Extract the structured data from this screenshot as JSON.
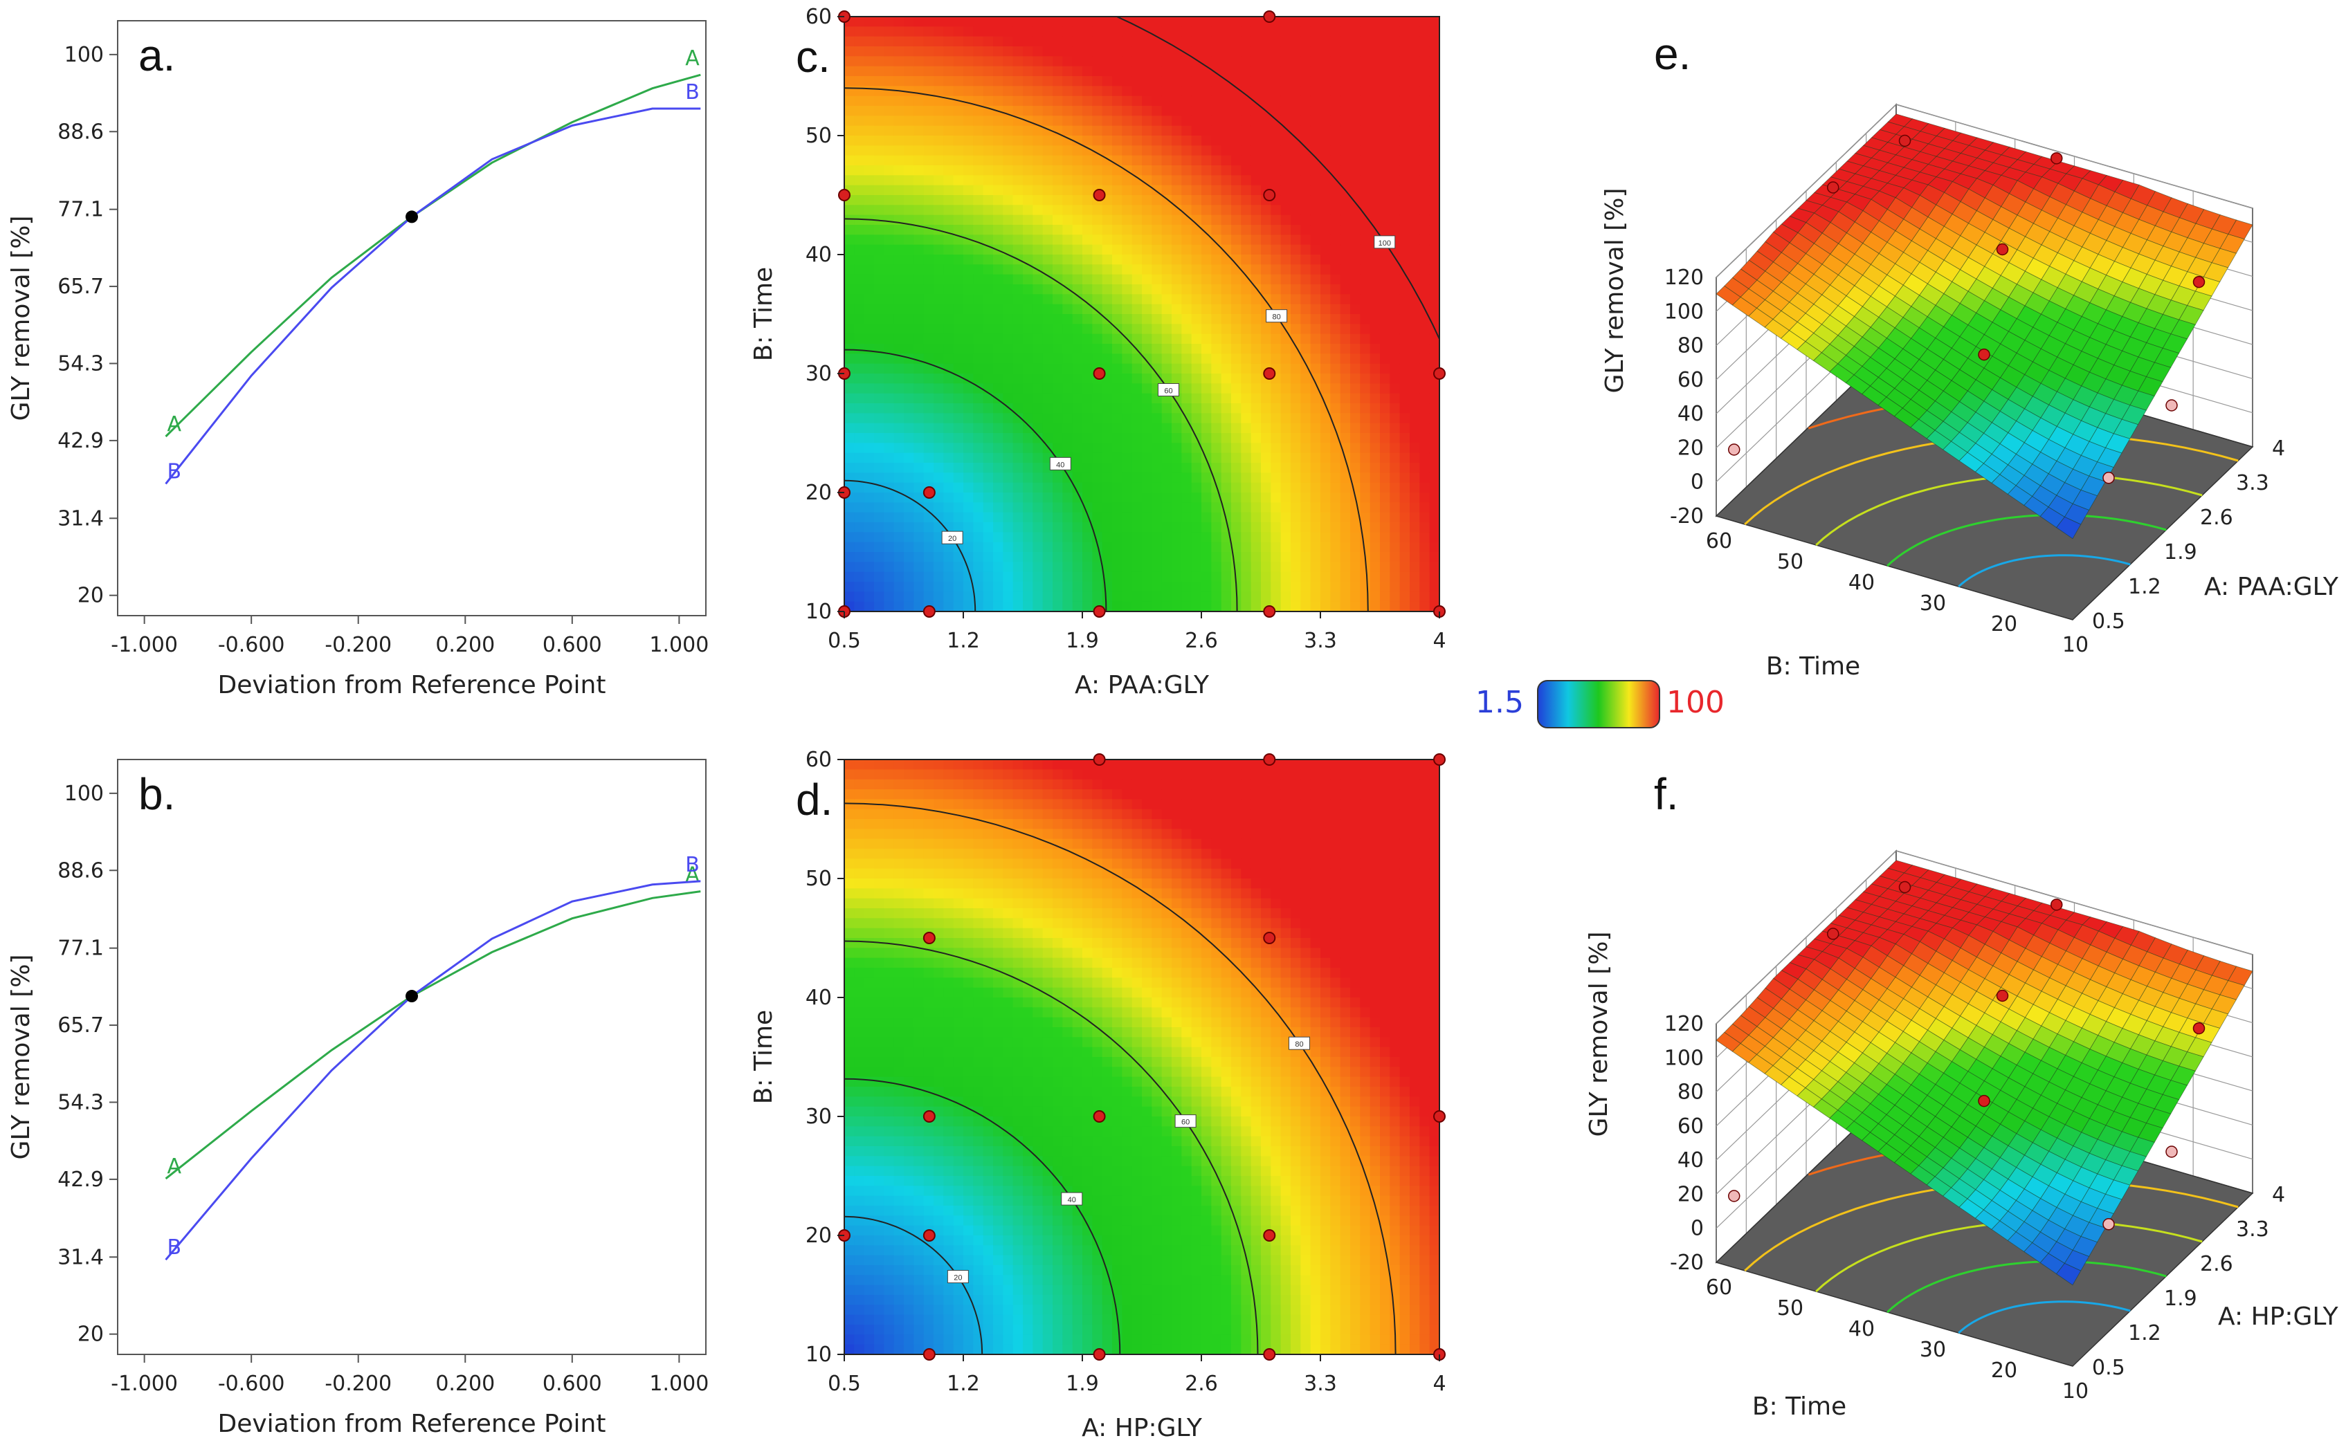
{
  "figure": {
    "colorbar": {
      "min_label": "1.5",
      "max_label": "100",
      "min_color": "#1f3fd8",
      "max_color": "#e8272c"
    }
  },
  "chart_data": [
    {
      "id": "a",
      "type": "line",
      "panel_label": "a.",
      "xlabel": "Deviation from Reference Point",
      "ylabel": "GLY removal [%]",
      "xlim": [
        -1.1,
        1.1
      ],
      "ylim": [
        17,
        105
      ],
      "xticks": [
        "-1.000",
        "-0.600",
        "-0.200",
        "0.200",
        "0.600",
        "1.000"
      ],
      "yticks": [
        "20",
        "31.4",
        "42.9",
        "54.3",
        "65.7",
        "77.1",
        "88.6",
        "100"
      ],
      "reference_point": {
        "x": 0,
        "y": 76
      },
      "series": [
        {
          "name": "A",
          "color": "#2eaa4a",
          "x": [
            -0.92,
            -0.6,
            -0.3,
            0,
            0.3,
            0.6,
            0.9,
            1.08
          ],
          "y": [
            43.5,
            56,
            67,
            76,
            84,
            90,
            95,
            97
          ]
        },
        {
          "name": "B",
          "color": "#4a4af0",
          "x": [
            -0.92,
            -0.6,
            -0.3,
            0,
            0.3,
            0.6,
            0.9,
            1.08
          ],
          "y": [
            36.5,
            52.5,
            65.5,
            76,
            84.5,
            89.5,
            92,
            92
          ]
        }
      ]
    },
    {
      "id": "b",
      "type": "line",
      "panel_label": "b.",
      "xlabel": "Deviation from Reference Point",
      "ylabel": "GLY removal [%]",
      "xlim": [
        -1.1,
        1.1
      ],
      "ylim": [
        17,
        105
      ],
      "xticks": [
        "-1.000",
        "-0.600",
        "-0.200",
        "0.200",
        "0.600",
        "1.000"
      ],
      "yticks": [
        "20",
        "31.4",
        "42.9",
        "54.3",
        "65.7",
        "77.1",
        "88.6",
        "100"
      ],
      "reference_point": {
        "x": 0,
        "y": 70
      },
      "series": [
        {
          "name": "A",
          "color": "#2eaa4a",
          "x": [
            -0.92,
            -0.6,
            -0.3,
            0,
            0.3,
            0.6,
            0.9,
            1.08
          ],
          "y": [
            43,
            53,
            62,
            70,
            76.5,
            81.5,
            84.5,
            85.5
          ]
        },
        {
          "name": "B",
          "color": "#4a4af0",
          "x": [
            -0.92,
            -0.6,
            -0.3,
            0,
            0.3,
            0.6,
            0.9,
            1.08
          ],
          "y": [
            31,
            46,
            59,
            70,
            78.5,
            84,
            86.5,
            87
          ]
        }
      ]
    },
    {
      "id": "c",
      "type": "heatmap",
      "panel_label": "c.",
      "xlabel": "A: PAA:GLY",
      "ylabel": "B: Time",
      "xlim": [
        0.5,
        4
      ],
      "ylim": [
        10,
        60
      ],
      "xticks": [
        "0.5",
        "1.2",
        "1.9",
        "2.6",
        "3.3",
        "4"
      ],
      "yticks": [
        "10",
        "20",
        "30",
        "40",
        "50",
        "60"
      ],
      "contour_levels": [
        "20",
        "40",
        "60",
        "80",
        "100"
      ],
      "points": [
        [
          0.5,
          60
        ],
        [
          3,
          60
        ],
        [
          0.5,
          45
        ],
        [
          2,
          45
        ],
        [
          3,
          45
        ],
        [
          0.5,
          30
        ],
        [
          2,
          30
        ],
        [
          3,
          30
        ],
        [
          4,
          30
        ],
        [
          0.5,
          20
        ],
        [
          1,
          20
        ],
        [
          0.5,
          10
        ],
        [
          1,
          10
        ],
        [
          2,
          10
        ],
        [
          3,
          10
        ],
        [
          4,
          10
        ]
      ]
    },
    {
      "id": "d",
      "type": "heatmap",
      "panel_label": "d.",
      "xlabel": "A: HP:GLY",
      "ylabel": "B: Time",
      "xlim": [
        0.5,
        4
      ],
      "ylim": [
        10,
        60
      ],
      "xticks": [
        "0.5",
        "1.2",
        "1.9",
        "2.6",
        "3.3",
        "4"
      ],
      "yticks": [
        "10",
        "20",
        "30",
        "40",
        "50",
        "60"
      ],
      "contour_levels": [
        "20",
        "40",
        "60",
        "80"
      ],
      "points": [
        [
          2,
          60
        ],
        [
          3,
          60
        ],
        [
          4,
          60
        ],
        [
          1,
          45
        ],
        [
          3,
          45
        ],
        [
          1,
          30
        ],
        [
          2,
          30
        ],
        [
          4,
          30
        ],
        [
          0.5,
          20
        ],
        [
          1,
          20
        ],
        [
          3,
          20
        ],
        [
          1,
          10
        ],
        [
          2,
          10
        ],
        [
          3,
          10
        ],
        [
          4,
          10
        ]
      ]
    },
    {
      "id": "e",
      "type": "surface",
      "panel_label": "e.",
      "xlabel": "A: PAA:GLY",
      "ylabel": "B: Time",
      "zlabel": "GLY removal [%]",
      "xticks": [
        "0.5",
        "1.2",
        "1.9",
        "2.6",
        "3.3",
        "4"
      ],
      "yticks": [
        "10",
        "20",
        "30",
        "40",
        "50",
        "60"
      ],
      "zticks": [
        "-20",
        "0",
        "20",
        "40",
        "60",
        "80",
        "100",
        "120"
      ]
    },
    {
      "id": "f",
      "type": "surface",
      "panel_label": "f.",
      "xlabel": "A: HP:GLY",
      "ylabel": "B: Time",
      "zlabel": "GLY removal [%]",
      "xticks": [
        "0.5",
        "1.2",
        "1.9",
        "2.6",
        "3.3",
        "4"
      ],
      "yticks": [
        "10",
        "20",
        "30",
        "40",
        "50",
        "60"
      ],
      "zticks": [
        "-20",
        "0",
        "20",
        "40",
        "60",
        "80",
        "100",
        "120"
      ]
    }
  ]
}
